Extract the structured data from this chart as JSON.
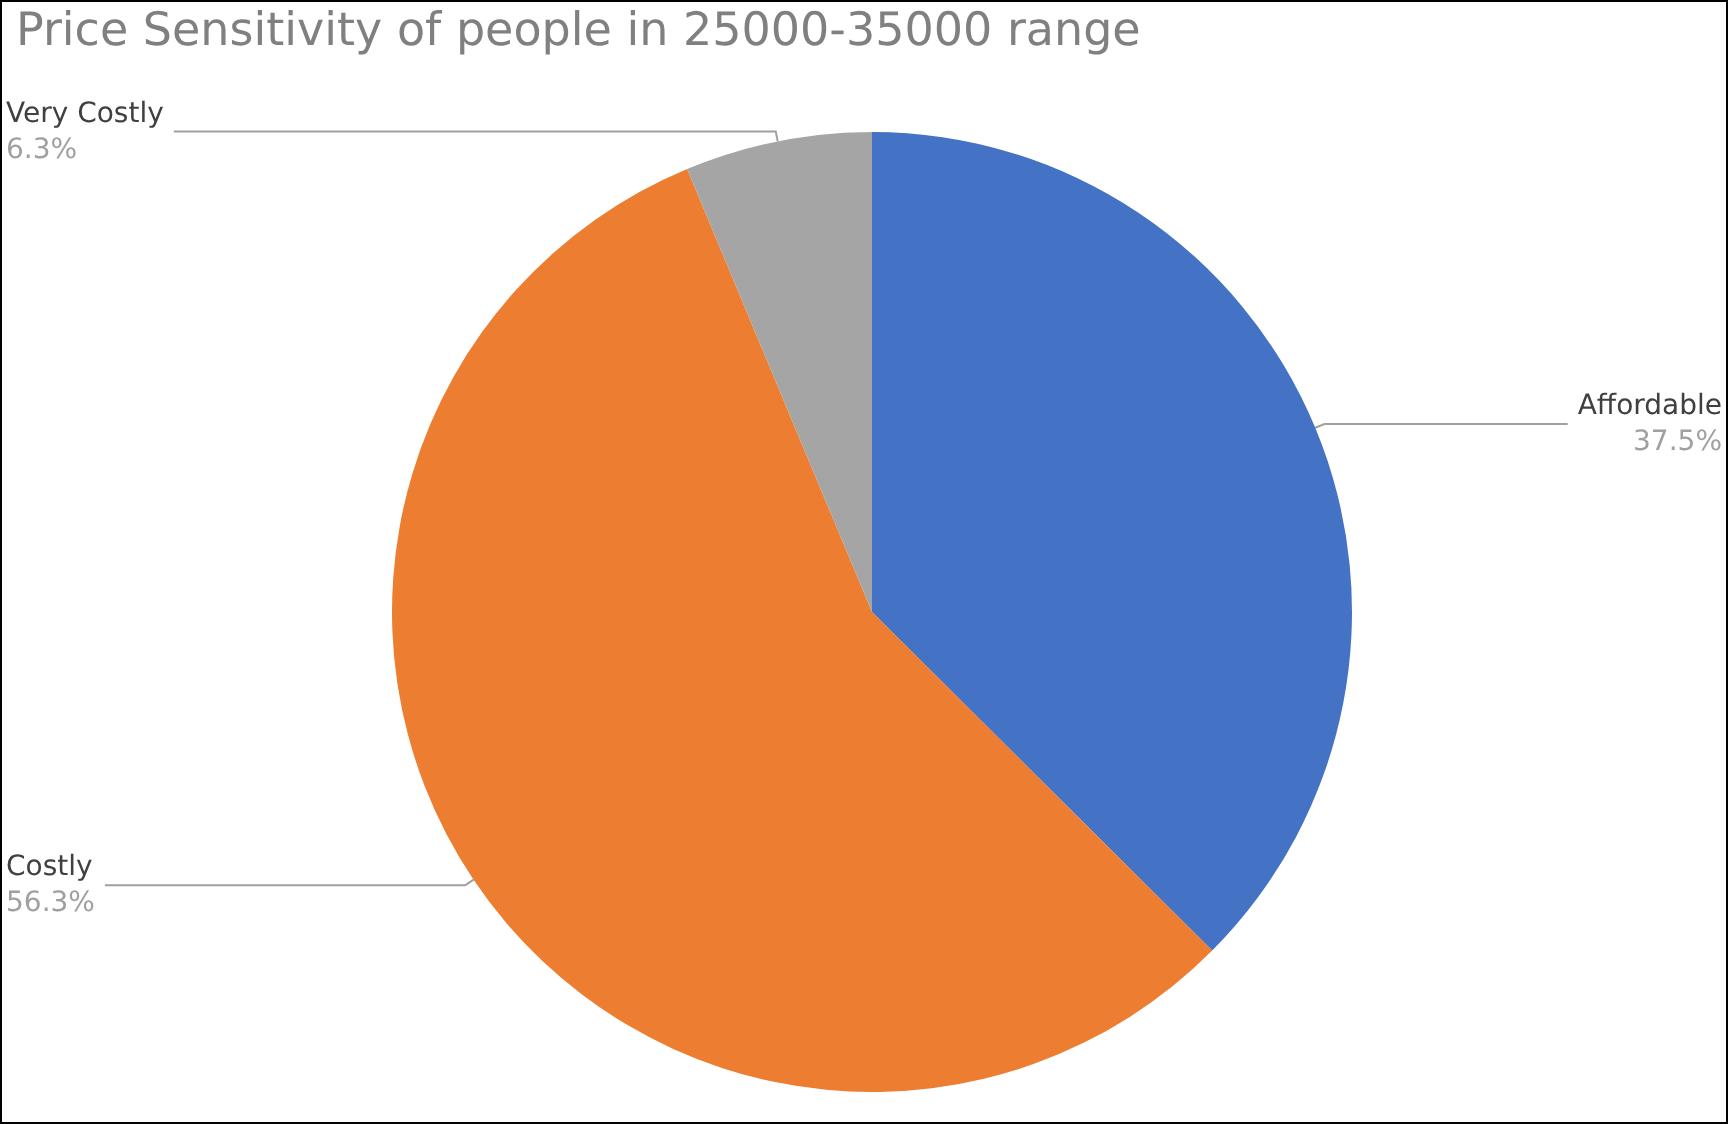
{
  "chart_data": {
    "type": "pie",
    "title": "Price Sensitivity of people in 25000-35000 range",
    "categories": [
      "Affordable",
      "Costly",
      "Very Costly"
    ],
    "values": [
      37.5,
      56.3,
      6.3
    ],
    "colors": [
      "#4472c4",
      "#ed7d31",
      "#a5a5a5"
    ],
    "value_labels": [
      "37.5%",
      "56.3%",
      "6.3%"
    ],
    "legend": false
  }
}
